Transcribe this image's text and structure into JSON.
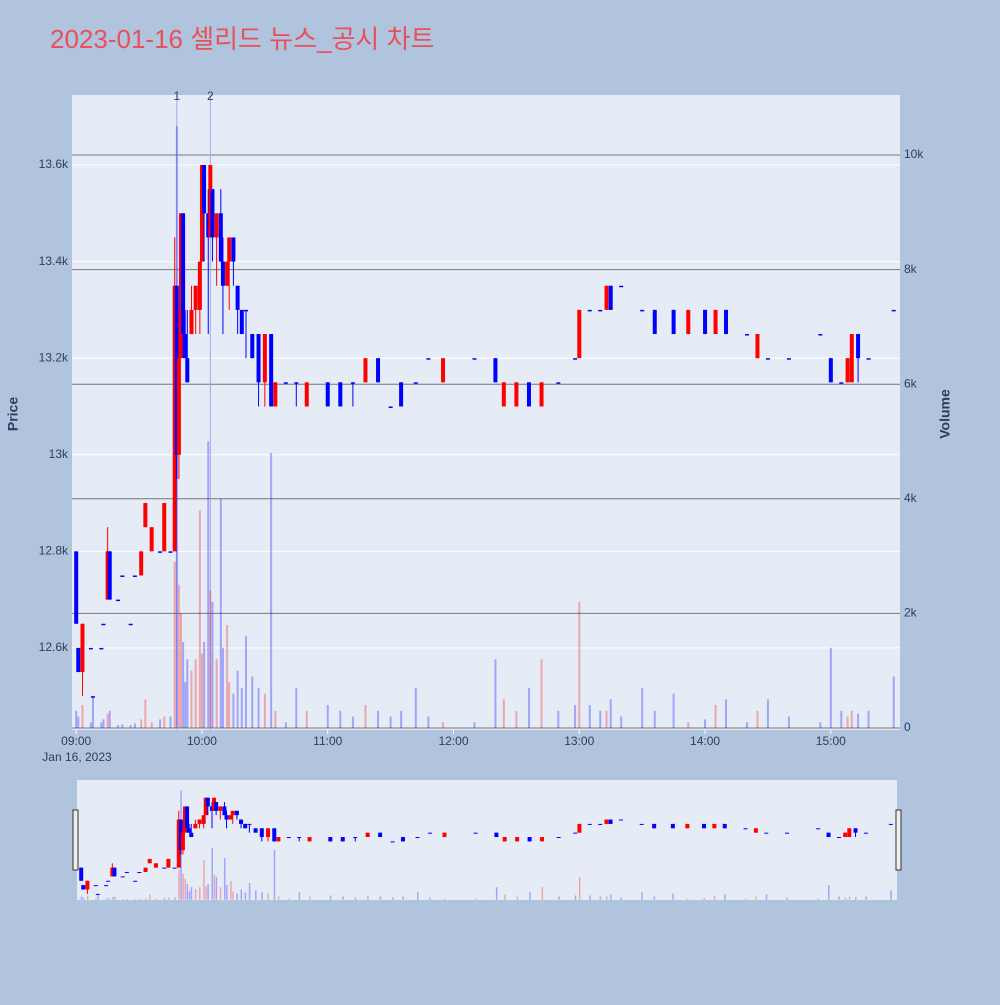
{
  "chart_data": {
    "type": "candlestick",
    "title": "2023-01-16 셀리드 뉴스_공시 차트",
    "y_title": "Price",
    "y2_title": "Volume",
    "x_date_label": "Jan 16, 2023",
    "increasing_color": "#ff0000",
    "decreasing_color": "#0000ff",
    "grid": true,
    "range_slider": true,
    "xlim": [
      "2023-01-16 08:58",
      "2023-01-16 15:33"
    ],
    "xticks": [
      {
        "value": "2023-01-16 09:00",
        "label": "09:00"
      },
      {
        "value": "2023-01-16 10:00",
        "label": "10:00"
      },
      {
        "value": "2023-01-16 11:00",
        "label": "11:00"
      },
      {
        "value": "2023-01-16 12:00",
        "label": "12:00"
      },
      {
        "value": "2023-01-16 13:00",
        "label": "13:00"
      },
      {
        "value": "2023-01-16 14:00",
        "label": "14:00"
      },
      {
        "value": "2023-01-16 15:00",
        "label": "15:00"
      }
    ],
    "ylim": [
      12430,
      13745
    ],
    "yticks": [
      {
        "value": 12600,
        "label": "12.6k"
      },
      {
        "value": 12800,
        "label": "12.8k"
      },
      {
        "value": 13000,
        "label": "13k"
      },
      {
        "value": 13200,
        "label": "13.2k"
      },
      {
        "value": 13400,
        "label": "13.4k"
      },
      {
        "value": 13600,
        "label": "13.6k"
      }
    ],
    "y2lim": [
      -35,
      11047
    ],
    "y2ticks": [
      0,
      {
        "value": 2000,
        "label": "2k"
      },
      {
        "value": 4000,
        "label": "4k"
      },
      {
        "value": 6000,
        "label": "6k"
      },
      {
        "value": 8000,
        "label": "8k"
      },
      {
        "value": 10000,
        "label": "10k"
      }
    ],
    "annotations": [
      {
        "x": "2023-01-16 09:48",
        "text": "1"
      },
      {
        "x": "2023-01-16 10:04",
        "text": "2"
      }
    ],
    "x": [
      "2023-01-16 09:00",
      "2023-01-16 09:01",
      "2023-01-16 09:03",
      "2023-01-16 09:07",
      "2023-01-16 09:08",
      "2023-01-16 09:12",
      "2023-01-16 09:13",
      "2023-01-16 09:15",
      "2023-01-16 09:16",
      "2023-01-16 09:20",
      "2023-01-16 09:22",
      "2023-01-16 09:26",
      "2023-01-16 09:28",
      "2023-01-16 09:31",
      "2023-01-16 09:33",
      "2023-01-16 09:36",
      "2023-01-16 09:40",
      "2023-01-16 09:42",
      "2023-01-16 09:45",
      "2023-01-16 09:47",
      "2023-01-16 09:48",
      "2023-01-16 09:49",
      "2023-01-16 09:50",
      "2023-01-16 09:51",
      "2023-01-16 09:52",
      "2023-01-16 09:53",
      "2023-01-16 09:55",
      "2023-01-16 09:57",
      "2023-01-16 09:59",
      "2023-01-16 10:00",
      "2023-01-16 10:01",
      "2023-01-16 10:03",
      "2023-01-16 10:04",
      "2023-01-16 10:05",
      "2023-01-16 10:07",
      "2023-01-16 10:09",
      "2023-01-16 10:10",
      "2023-01-16 10:12",
      "2023-01-16 10:13",
      "2023-01-16 10:15",
      "2023-01-16 10:17",
      "2023-01-16 10:19",
      "2023-01-16 10:21",
      "2023-01-16 10:24",
      "2023-01-16 10:27",
      "2023-01-16 10:30",
      "2023-01-16 10:33",
      "2023-01-16 10:35",
      "2023-01-16 10:40",
      "2023-01-16 10:45",
      "2023-01-16 10:50",
      "2023-01-16 11:00",
      "2023-01-16 11:06",
      "2023-01-16 11:12",
      "2023-01-16 11:18",
      "2023-01-16 11:24",
      "2023-01-16 11:30",
      "2023-01-16 11:35",
      "2023-01-16 11:42",
      "2023-01-16 11:48",
      "2023-01-16 11:55",
      "2023-01-16 12:10",
      "2023-01-16 12:20",
      "2023-01-16 12:24",
      "2023-01-16 12:30",
      "2023-01-16 12:36",
      "2023-01-16 12:42",
      "2023-01-16 12:50",
      "2023-01-16 12:58",
      "2023-01-16 13:00",
      "2023-01-16 13:05",
      "2023-01-16 13:10",
      "2023-01-16 13:13",
      "2023-01-16 13:15",
      "2023-01-16 13:20",
      "2023-01-16 13:30",
      "2023-01-16 13:36",
      "2023-01-16 13:45",
      "2023-01-16 13:52",
      "2023-01-16 14:00",
      "2023-01-16 14:05",
      "2023-01-16 14:10",
      "2023-01-16 14:20",
      "2023-01-16 14:25",
      "2023-01-16 14:30",
      "2023-01-16 14:40",
      "2023-01-16 14:55",
      "2023-01-16 15:00",
      "2023-01-16 15:05",
      "2023-01-16 15:08",
      "2023-01-16 15:10",
      "2023-01-16 15:13",
      "2023-01-16 15:18",
      "2023-01-16 15:30"
    ],
    "open": [
      12800,
      12600,
      12550,
      12600,
      12500,
      12600,
      12650,
      12700,
      12800,
      12700,
      12750,
      12650,
      12750,
      12750,
      12850,
      12800,
      12800,
      12800,
      12800,
      12800,
      13350,
      13000,
      13200,
      13500,
      13250,
      13200,
      13250,
      13300,
      13300,
      13400,
      13600,
      13500,
      13450,
      13550,
      13450,
      13500,
      13400,
      13350,
      13400,
      13450,
      13350,
      13300,
      13300,
      13250,
      13250,
      13150,
      13250,
      13100,
      13150,
      13150,
      13100,
      13150,
      13150,
      13150,
      13150,
      13200,
      13100,
      13150,
      13150,
      13200,
      13150,
      13200,
      13200,
      13100,
      13100,
      13150,
      13100,
      13150,
      13200,
      13200,
      13300,
      13300,
      13300,
      13350,
      13350,
      13300,
      13300,
      13300,
      13250,
      13300,
      13250,
      13300,
      13250,
      13200,
      13200,
      13200,
      13250,
      13200,
      13150,
      13150,
      13150,
      13250,
      13200,
      13300
    ],
    "high": [
      12800,
      12600,
      12650,
      12600,
      12500,
      12600,
      12650,
      12850,
      12800,
      12700,
      12750,
      12650,
      12750,
      12800,
      12900,
      12850,
      12800,
      12900,
      12800,
      13450,
      13350,
      13300,
      13500,
      13500,
      13300,
      13300,
      13350,
      13350,
      13400,
      13600,
      13600,
      13550,
      13600,
      13550,
      13500,
      13550,
      13450,
      13400,
      13450,
      13450,
      13350,
      13300,
      13300,
      13250,
      13250,
      13250,
      13250,
      13150,
      13150,
      13150,
      13150,
      13150,
      13150,
      13150,
      13200,
      13200,
      13100,
      13150,
      13150,
      13200,
      13200,
      13200,
      13200,
      13150,
      13150,
      13150,
      13150,
      13150,
      13200,
      13300,
      13300,
      13300,
      13350,
      13350,
      13350,
      13300,
      13300,
      13300,
      13300,
      13300,
      13300,
      13300,
      13250,
      13250,
      13200,
      13200,
      13250,
      13200,
      13150,
      13200,
      13250,
      13250,
      13200,
      13300
    ],
    "low": [
      12650,
      12550,
      12500,
      12600,
      12500,
      12600,
      12650,
      12700,
      12700,
      12700,
      12750,
      12650,
      12750,
      12750,
      12850,
      12800,
      12800,
      12800,
      12800,
      12800,
      12950,
      12950,
      13200,
      13200,
      13200,
      13150,
      13250,
      13250,
      13250,
      13400,
      13400,
      13250,
      13450,
      13400,
      13350,
      13400,
      13250,
      13350,
      13300,
      13350,
      13250,
      13250,
      13200,
      13200,
      13100,
      13100,
      13100,
      13100,
      13150,
      13100,
      13100,
      13100,
      13100,
      13100,
      13150,
      13150,
      13100,
      13100,
      13150,
      13200,
      13150,
      13200,
      13150,
      13100,
      13100,
      13100,
      13100,
      13150,
      13200,
      13200,
      13300,
      13300,
      13300,
      13300,
      13350,
      13300,
      13250,
      13250,
      13250,
      13250,
      13250,
      13250,
      13250,
      13200,
      13200,
      13200,
      13250,
      13150,
      13150,
      13150,
      13150,
      13150,
      13200,
      13300
    ],
    "close": [
      12650,
      12550,
      12650,
      12600,
      12500,
      12600,
      12650,
      12800,
      12700,
      12700,
      12750,
      12650,
      12750,
      12800,
      12900,
      12850,
      12800,
      12900,
      12800,
      13350,
      13000,
      13200,
      13500,
      13250,
      13200,
      13150,
      13300,
      13350,
      13400,
      13600,
      13500,
      13450,
      13600,
      13450,
      13500,
      13400,
      13350,
      13400,
      13450,
      13400,
      13300,
      13250,
      13300,
      13200,
      13150,
      13250,
      13100,
      13150,
      13150,
      13150,
      13150,
      13100,
      13100,
      13150,
      13200,
      13150,
      13100,
      13100,
      13150,
      13200,
      13200,
      13200,
      13150,
      13150,
      13150,
      13100,
      13150,
      13150,
      13200,
      13300,
      13300,
      13300,
      13350,
      13300,
      13350,
      13300,
      13250,
      13250,
      13300,
      13250,
      13300,
      13250,
      13250,
      13250,
      13200,
      13200,
      13250,
      13150,
      13150,
      13200,
      13250,
      13200,
      13200,
      13300
    ],
    "volume": [
      300,
      200,
      400,
      100,
      550,
      100,
      150,
      250,
      300,
      50,
      60,
      50,
      80,
      150,
      500,
      100,
      150,
      200,
      200,
      2900,
      10500,
      2500,
      2000,
      1500,
      800,
      1200,
      1000,
      1200,
      3800,
      1300,
      1500,
      5000,
      2400,
      2200,
      1200,
      4000,
      1400,
      1800,
      800,
      600,
      1000,
      700,
      1600,
      900,
      700,
      600,
      4800,
      300,
      100,
      700,
      300,
      400,
      300,
      200,
      400,
      300,
      200,
      300,
      700,
      200,
      100,
      100,
      1200,
      500,
      300,
      700,
      1200,
      300,
      400,
      2200,
      400,
      300,
      300,
      500,
      200,
      700,
      300,
      600,
      100,
      150,
      400,
      500,
      100,
      300,
      500,
      200,
      100,
      1400,
      300,
      200,
      300,
      250,
      300,
      900
    ]
  }
}
